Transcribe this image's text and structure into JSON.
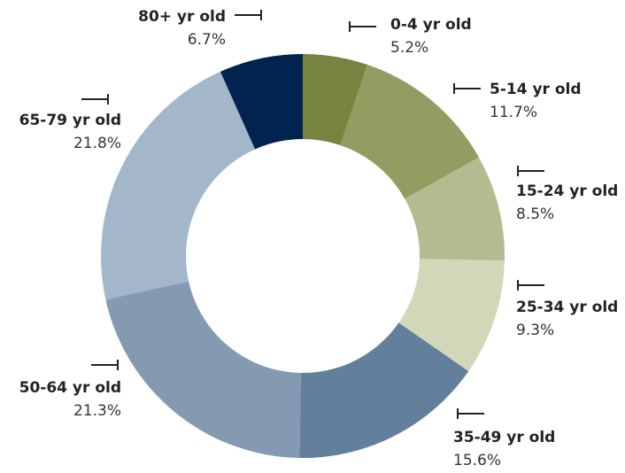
{
  "chart_data": {
    "type": "donut",
    "categories": [
      "0-4 yr old",
      "5-14 yr old",
      "15-24 yr old",
      "25-34 yr old",
      "35-49 yr old",
      "50-64 yr old",
      "65-79 yr old",
      "80+ yr old"
    ],
    "values": [
      5.2,
      11.7,
      8.5,
      9.3,
      15.6,
      21.3,
      21.8,
      6.7
    ],
    "value_labels": [
      "5.2%",
      "11.7%",
      "8.5%",
      "9.3%",
      "15.6%",
      "21.3%",
      "21.8%",
      "6.7%"
    ],
    "colors": [
      "#77843f",
      "#949c62",
      "#b5bb90",
      "#d3d7b9",
      "#627f9c",
      "#8499b2",
      "#a4b6ca",
      "#00244f"
    ]
  }
}
